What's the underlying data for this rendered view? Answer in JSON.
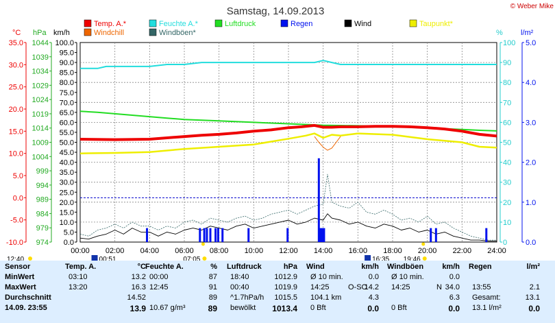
{
  "title": "Samstag, 14.09.2013",
  "copyright": "© Weber Mike",
  "colors": {
    "temp": "#ee0000",
    "humidity": "#22dddd",
    "pressure": "#22dd22",
    "rain": "#0011ee",
    "wind": "#000000",
    "dewpoint": "#eeee00",
    "windchill": "#ee6600",
    "gust": "#336666"
  },
  "legend": [
    {
      "label": "Temp. A.*",
      "color": "#ee0000"
    },
    {
      "label": "Feuchte A.*",
      "color": "#22dddd"
    },
    {
      "label": "Luftdruck",
      "color": "#22dd22"
    },
    {
      "label": "Regen",
      "color": "#0011ee"
    },
    {
      "label": "Wind",
      "color": "#000000"
    },
    {
      "label": "Taupunkt*",
      "color": "#eeee00"
    },
    {
      "label": "Windchill",
      "color": "#ee6600"
    },
    {
      "label": "Windböen*",
      "color": "#336666"
    }
  ],
  "axis_units": {
    "temp": "°C",
    "pressure": "hPa",
    "wind": "km/h",
    "humidity": "%",
    "rain": "l/m²"
  },
  "sun": {
    "sunrise": "07:05",
    "sunset": "19:46",
    "moonrise": "16:35",
    "moonset": "00:51",
    "daylength": "12:40"
  },
  "chart_data": {
    "type": "line",
    "x_ticks": [
      "00:00",
      "02:00",
      "04:00",
      "06:00",
      "08:00",
      "10:00",
      "12:00",
      "14:00",
      "16:00",
      "18:00",
      "20:00",
      "22:00",
      "24:00"
    ],
    "temp_axis": {
      "min": -10,
      "max": 35,
      "ticks": [
        "-10.0",
        "-5.0",
        "0.0",
        "5.0",
        "10.0",
        "15.0",
        "20.0",
        "25.0",
        "30.0",
        "35.0"
      ]
    },
    "pressure_axis": {
      "min": 974,
      "max": 1044,
      "ticks": [
        "974",
        "979",
        "984",
        "989",
        "994",
        "999",
        "1004",
        "1009",
        "1014",
        "1019",
        "1024",
        "1029",
        "1034",
        "1039",
        "1044"
      ]
    },
    "wind_axis": {
      "min": 0,
      "max": 100,
      "ticks": [
        "0.0",
        "5.0",
        "10.0",
        "15.0",
        "20.0",
        "25.0",
        "30.0",
        "35.0",
        "40.0",
        "45.0",
        "50.0",
        "55.0",
        "60.0",
        "65.0",
        "70.0",
        "75.0",
        "80.0",
        "85.0",
        "90.0",
        "95.0",
        "100.0"
      ]
    },
    "humidity_axis": {
      "min": 0,
      "max": 100,
      "ticks": [
        "0",
        "10",
        "20",
        "30",
        "40",
        "50",
        "60",
        "70",
        "80",
        "90",
        "100"
      ]
    },
    "rain_axis": {
      "min": 0,
      "max": 5,
      "ticks": [
        "0.0",
        "1.0",
        "2.0",
        "3.0",
        "4.0",
        "5.0"
      ]
    },
    "series": [
      {
        "key": "temp",
        "x": [
          0,
          2,
          4,
          6,
          7,
          8,
          9,
          10,
          11,
          12,
          12.75,
          13.5,
          14,
          14.5,
          15,
          16,
          17,
          18,
          19,
          20,
          21,
          22,
          23,
          24
        ],
        "values": [
          13.2,
          13.1,
          13.2,
          13.8,
          14.1,
          14.3,
          14.6,
          15.0,
          15.3,
          15.8,
          16.0,
          16.3,
          15.9,
          15.9,
          16.0,
          16.0,
          16.1,
          16.1,
          16.0,
          15.8,
          15.5,
          15.0,
          14.3,
          13.9
        ]
      },
      {
        "key": "humidity",
        "x": [
          0,
          1,
          1.5,
          4,
          5,
          6,
          7,
          8,
          13.5,
          14,
          14.5,
          15,
          16,
          18,
          20,
          22,
          24
        ],
        "values": [
          87,
          87,
          88,
          88,
          89,
          89,
          90,
          90,
          90,
          91,
          90,
          89,
          89,
          89,
          89,
          89,
          89
        ]
      },
      {
        "key": "pressure",
        "x": [
          0,
          1,
          2,
          3,
          4,
          5,
          6,
          8,
          10,
          12,
          14,
          16,
          18,
          20,
          22,
          23,
          24
        ],
        "values": [
          1019.9,
          1019.5,
          1019,
          1018.5,
          1018,
          1017.5,
          1017,
          1016.5,
          1016,
          1015.5,
          1015,
          1014.8,
          1014.5,
          1014,
          1013.5,
          1013.2,
          1013
        ]
      },
      {
        "key": "dewpoint",
        "x": [
          0,
          2,
          4,
          6,
          8,
          10,
          12,
          13,
          13.5,
          14,
          14.5,
          15,
          16,
          18,
          20,
          22,
          23,
          24
        ],
        "values": [
          10.0,
          10.1,
          10.3,
          11.0,
          11.5,
          12.0,
          13.3,
          14.0,
          14.5,
          13.5,
          14.2,
          14.0,
          14.5,
          14.2,
          13.2,
          12.5,
          11.5,
          11.3
        ]
      },
      {
        "key": "windchill",
        "x": [
          13.5,
          13.75,
          14,
          14.25,
          14.5,
          14.75,
          15
        ],
        "values": [
          13.8,
          12.5,
          11.4,
          10.7,
          11.2,
          12.5,
          13.8
        ]
      },
      {
        "key": "wind",
        "x": [
          0,
          0.5,
          1,
          1.5,
          2,
          2.5,
          3,
          3.5,
          4,
          4.5,
          5,
          5.5,
          6,
          6.5,
          7,
          7.5,
          8,
          8.5,
          9,
          9.5,
          10,
          10.5,
          11,
          11.5,
          12,
          12.5,
          13,
          13.5,
          14,
          14.25,
          14.5,
          15,
          15.5,
          16,
          16.5,
          17,
          17.5,
          18,
          18.5,
          19,
          19.5,
          20,
          20.5,
          21,
          21.5,
          22,
          22.5,
          23,
          23.5,
          24
        ],
        "values": [
          2,
          1.5,
          3,
          4,
          6,
          4,
          7,
          5,
          5,
          3,
          5,
          4,
          6,
          7,
          6,
          8,
          7,
          6,
          8,
          9,
          7,
          8,
          9,
          10,
          11,
          9,
          10,
          12,
          11,
          14.2,
          12,
          11,
          9,
          10,
          8,
          7,
          9,
          8,
          6,
          7,
          5,
          6,
          4,
          5,
          3,
          2,
          1,
          1,
          0.5,
          0.5
        ]
      },
      {
        "key": "gust",
        "x": [
          0,
          0.5,
          1,
          1.5,
          2,
          2.5,
          3,
          3.5,
          4,
          4.5,
          5,
          5.5,
          6,
          6.5,
          7,
          7.5,
          8,
          8.5,
          9,
          9.5,
          10,
          10.5,
          11,
          11.5,
          12,
          12.5,
          13,
          13.5,
          14,
          14.25,
          14.5,
          15,
          15.5,
          16,
          16.5,
          17,
          17.5,
          18,
          18.5,
          19,
          19.5,
          20,
          20.5,
          21,
          21.5,
          22,
          22.5,
          23,
          23.5,
          24
        ],
        "values": [
          4,
          3,
          6,
          7,
          9,
          7,
          10,
          8,
          8,
          6,
          8,
          7,
          10,
          11,
          9,
          12,
          11,
          10,
          12,
          13,
          11,
          12,
          14,
          15,
          16,
          14,
          16,
          18,
          19,
          34,
          20,
          18,
          17,
          20,
          15,
          14,
          16,
          14,
          11,
          12,
          10,
          13,
          9,
          10,
          7,
          5,
          3,
          2,
          1,
          1
        ]
      },
      {
        "key": "rain",
        "x": [
          3.85,
          6.9,
          7.15,
          7.3,
          7.5,
          7.8,
          7.95,
          8.2,
          9.7,
          11.95,
          13.75,
          13.85,
          13.95,
          14.05,
          20.2,
          20.5,
          23.4
        ],
        "values": [
          0.35,
          0.35,
          0.35,
          0.35,
          0.35,
          0.35,
          0.35,
          0.35,
          0.35,
          0.35,
          2.1,
          0.35,
          0.35,
          0.35,
          0.35,
          0.35,
          0.35
        ]
      }
    ]
  },
  "table": {
    "col_headers": [
      "Sensor",
      "Temp. A.",
      "°C",
      "Feuchte A.",
      "%",
      "Luftdruck",
      "hPa",
      "Wind",
      "km/h",
      "Windböen",
      "km/h",
      "Regen",
      "l/m²"
    ],
    "rows": [
      {
        "label": "MinWert",
        "t_time": "03:10",
        "t_val": "13.2",
        "h_time": "00:00",
        "h_val": "87",
        "p_time": "18:40",
        "p_val": "1012.9",
        "w_time": "Ø 10 min.",
        "w_val": "0.0",
        "g_time": "Ø 10 min.",
        "g_val": "0.0",
        "r_time": "",
        "r_val": ""
      },
      {
        "label": "MaxWert",
        "t_time": "13:20",
        "t_val": "16.3",
        "h_time": "12:45",
        "h_val": "91",
        "p_time": "00:40",
        "p_val": "1019.9",
        "w_time": "14:25",
        "w_dir": "O-SO",
        "w_val": "14.2",
        "g_time": "14:25",
        "g_dir": "N",
        "g_val": "34.0",
        "r_time": "13:55",
        "r_val": "2.1"
      },
      {
        "label": "Durchschnitt",
        "t_time": "",
        "t_val": "14.52",
        "h_time": "",
        "h_val": "89",
        "p_time": "^1.7hPa/h",
        "p_val": "1015.5",
        "w_time": "104.1 km",
        "w_val": "4.3",
        "g_time": "",
        "g_val": "6.3",
        "r_time": "Gesamt:",
        "r_val": "13.1"
      },
      {
        "label": "14.09. 23:55",
        "t_time": "",
        "t_val": "13.9",
        "h_time": "10.67 g/m³",
        "h_val": "89",
        "p_time": "bewölkt",
        "p_val": "1013.4",
        "w_time": "0 Bft",
        "w_val": "0.0",
        "g_time": "0 Bft",
        "g_val": "0.0",
        "r_time": "13.1 l/m²",
        "r_val": "0.0"
      }
    ]
  }
}
